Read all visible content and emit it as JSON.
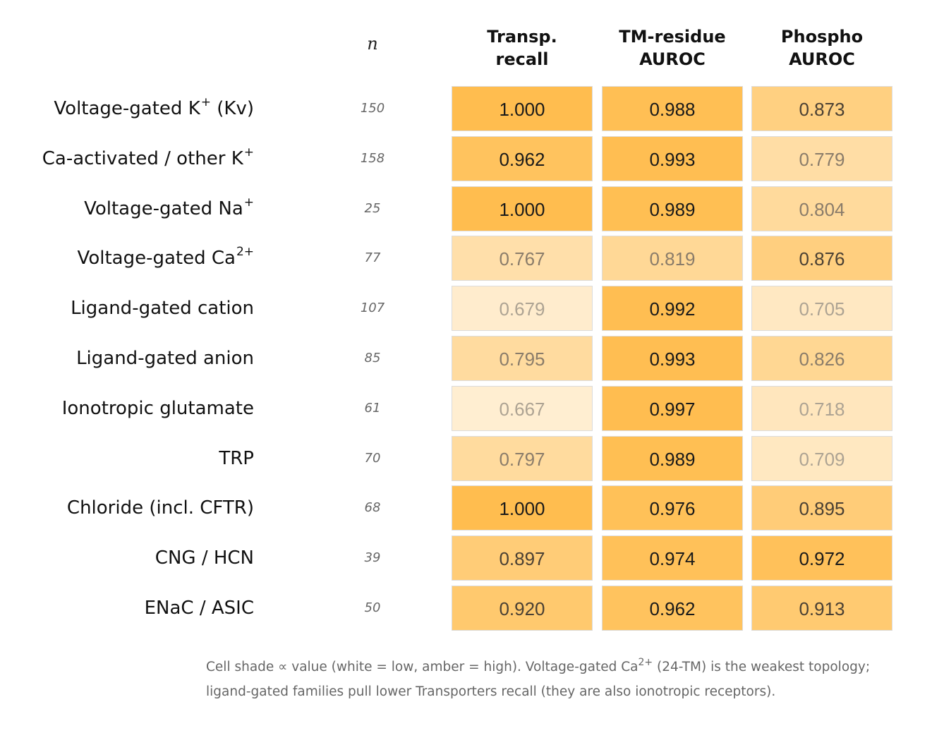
{
  "chart_data": {
    "type": "heatmap",
    "n_header": "n",
    "columns": [
      {
        "line1": "Transp.",
        "line2": "recall"
      },
      {
        "line1": "TM-residue",
        "line2": "AUROC"
      },
      {
        "line1": "Phospho",
        "line2": "AUROC"
      }
    ],
    "rows": [
      {
        "label": "Voltage-gated K",
        "sup": "+",
        "suffix": " (Kv)",
        "n": "150",
        "values": [
          1.0,
          0.988,
          0.873
        ]
      },
      {
        "label": "Ca-activated / other K",
        "sup": "+",
        "suffix": "",
        "n": "158",
        "values": [
          0.962,
          0.993,
          0.779
        ]
      },
      {
        "label": "Voltage-gated Na",
        "sup": "+",
        "suffix": "",
        "n": "25",
        "values": [
          1.0,
          0.989,
          0.804
        ]
      },
      {
        "label": "Voltage-gated Ca",
        "sup": "2+",
        "suffix": "",
        "n": "77",
        "values": [
          0.767,
          0.819,
          0.876
        ]
      },
      {
        "label": "Ligand-gated cation",
        "sup": "",
        "suffix": "",
        "n": "107",
        "values": [
          0.679,
          0.992,
          0.705
        ]
      },
      {
        "label": "Ligand-gated anion",
        "sup": "",
        "suffix": "",
        "n": "85",
        "values": [
          0.795,
          0.993,
          0.826
        ]
      },
      {
        "label": "Ionotropic glutamate",
        "sup": "",
        "suffix": "",
        "n": "61",
        "values": [
          0.667,
          0.997,
          0.718
        ]
      },
      {
        "label": "TRP",
        "sup": "",
        "suffix": "",
        "n": "70",
        "values": [
          0.797,
          0.989,
          0.709
        ]
      },
      {
        "label": "Chloride (incl. CFTR)",
        "sup": "",
        "suffix": "",
        "n": "68",
        "values": [
          1.0,
          0.976,
          0.895
        ]
      },
      {
        "label": "CNG / HCN",
        "sup": "",
        "suffix": "",
        "n": "39",
        "values": [
          0.897,
          0.974,
          0.972
        ]
      },
      {
        "label": "ENaC / ASIC",
        "sup": "",
        "suffix": "",
        "n": "50",
        "values": [
          0.92,
          0.962,
          0.913
        ]
      }
    ],
    "color_scale": {
      "low": "#ffffff",
      "high": "#ffbd4f"
    }
  },
  "note": {
    "line1_a": "Cell shade ∝ value (white = low, amber = high). Voltage-gated Ca",
    "line1_sup": "2+",
    "line1_b": " (24-TM) is the weakest topology;",
    "line2": "ligand-gated families pull lower Transporters recall (they are also ionotropic receptors)."
  }
}
